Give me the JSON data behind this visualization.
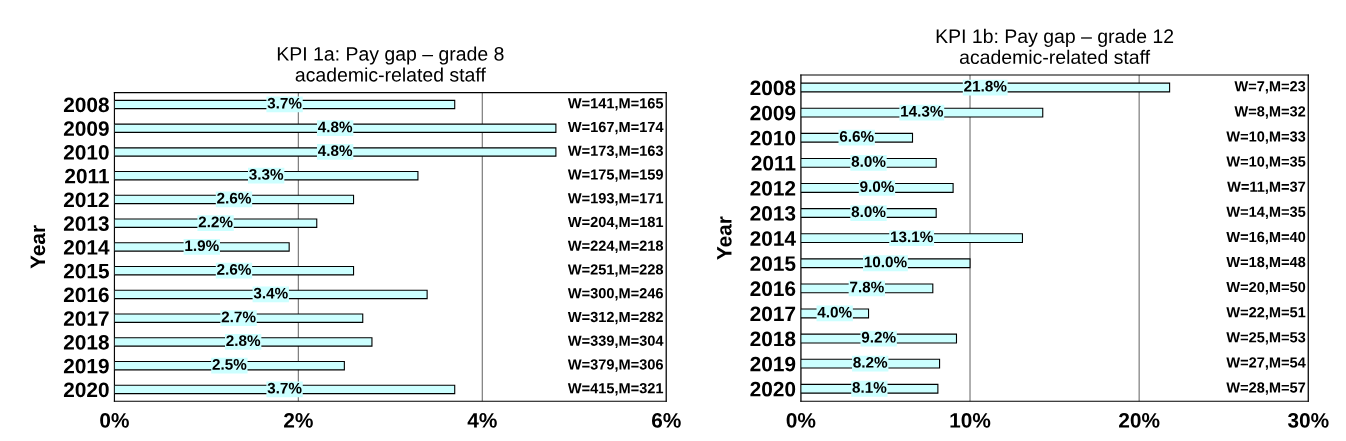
{
  "chart_data": [
    {
      "type": "bar",
      "orientation": "horizontal",
      "title": "KPI 1a: Pay gap – grade 8\nacademic-related staff",
      "ylabel": "Year",
      "categories": [
        "2008",
        "2009",
        "2010",
        "2011",
        "2012",
        "2013",
        "2014",
        "2015",
        "2016",
        "2017",
        "2018",
        "2019",
        "2020"
      ],
      "values": [
        3.7,
        4.8,
        4.8,
        3.3,
        2.6,
        2.2,
        1.9,
        2.6,
        3.4,
        2.7,
        2.8,
        2.5,
        3.7
      ],
      "value_labels": [
        "3.7%",
        "4.8%",
        "4.8%",
        "3.3%",
        "2.6%",
        "2.2%",
        "1.9%",
        "2.6%",
        "3.4%",
        "2.7%",
        "2.8%",
        "2.5%",
        "3.7%"
      ],
      "color": "#ccffff",
      "xlim": [
        0,
        6
      ],
      "xticks": [
        {
          "value": 0,
          "label": "0%"
        },
        {
          "value": 2,
          "label": "2%"
        },
        {
          "value": 4,
          "label": "4%"
        },
        {
          "value": 6,
          "label": "6%"
        }
      ],
      "grid": "x",
      "annotations": [
        "W=141,M=165",
        "W=167,M=174",
        "W=173,M=163",
        "W=175,M=159",
        "W=193,M=171",
        "W=204,M=181",
        "W=224,M=218",
        "W=251,M=228",
        "W=300,M=246",
        "W=312,M=282",
        "W=339,M=304",
        "W=379,M=306",
        "W=415,M=321"
      ]
    },
    {
      "type": "bar",
      "orientation": "horizontal",
      "title": "KPI 1b: Pay gap – grade 12\nacademic-related staff",
      "ylabel": "Year",
      "categories": [
        "2008",
        "2009",
        "2010",
        "2011",
        "2012",
        "2013",
        "2014",
        "2015",
        "2016",
        "2017",
        "2018",
        "2019",
        "2020"
      ],
      "values": [
        21.8,
        14.3,
        6.6,
        8.0,
        9.0,
        8.0,
        13.1,
        10.0,
        7.8,
        4.0,
        9.2,
        8.2,
        8.1
      ],
      "value_labels": [
        "21.8%",
        "14.3%",
        "6.6%",
        "8.0%",
        "9.0%",
        "8.0%",
        "13.1%",
        "10.0%",
        "7.8%",
        "4.0%",
        "9.2%",
        "8.2%",
        "8.1%"
      ],
      "color": "#ccffff",
      "xlim": [
        0,
        30
      ],
      "xticks": [
        {
          "value": 0,
          "label": "0%"
        },
        {
          "value": 10,
          "label": "10%"
        },
        {
          "value": 20,
          "label": "20%"
        },
        {
          "value": 30,
          "label": "30%"
        }
      ],
      "grid": "x",
      "annotations": [
        "W=7,M=23",
        "W=8,M=32",
        "W=10,M=33",
        "W=10,M=35",
        "W=11,M=37",
        "W=14,M=35",
        "W=16,M=40",
        "W=18,M=48",
        "W=20,M=50",
        "W=22,M=51",
        "W=25,M=53",
        "W=27,M=54",
        "W=28,M=57"
      ]
    }
  ]
}
